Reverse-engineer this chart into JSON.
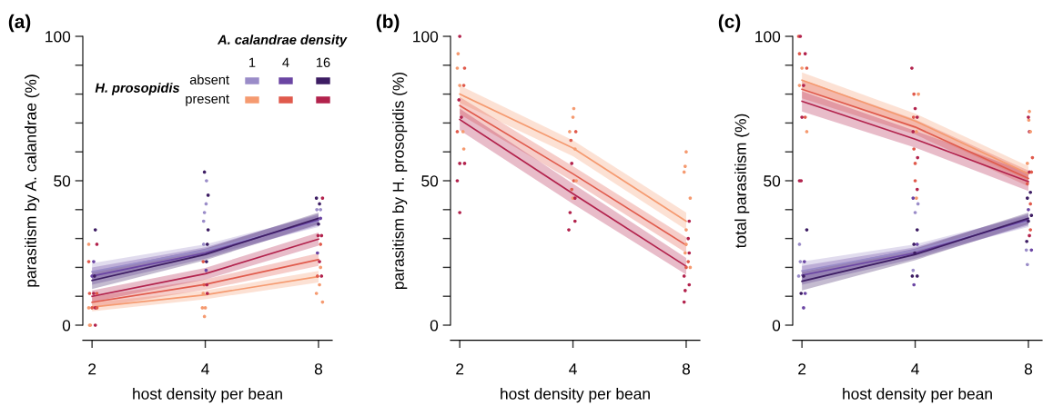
{
  "chart_data": [
    {
      "type": "line",
      "title": "(a)",
      "xlabel": "host density per bean",
      "ylabel": "parasitism by A. calandrae (%)",
      "log": "x",
      "xlim": [
        1.89,
        8.7
      ],
      "xticks": [
        2,
        4,
        8
      ],
      "ylim": [
        0,
        100
      ],
      "yticks": [
        0,
        {
          "value": 10,
          "label": null
        },
        {
          "value": 20,
          "label": null
        },
        {
          "value": 30,
          "label": null
        },
        {
          "value": 40,
          "label": null
        },
        50,
        {
          "value": 60,
          "label": null
        },
        {
          "value": 70,
          "label": null
        },
        {
          "value": 80,
          "label": null
        },
        {
          "value": 90,
          "label": null
        },
        100
      ],
      "legend_title": "A. calandrae density",
      "annotations": [
        "H. prosopidis",
        "absent",
        "present",
        "1",
        "4",
        "16"
      ],
      "series": [
        {
          "type": "scatter",
          "x": [
            1.97,
            1.98,
            2.04,
            1.96,
            2.0,
            2.04,
            2.06,
            1.97,
            2.02,
            2.06,
            2.0,
            2.03,
            1.96,
            2.02,
            1.96,
            2.06,
            2.04,
            3.98,
            3.93,
            4.0,
            3.95,
            4.05,
            3.97,
            4.04,
            4.02,
            3.95,
            4.03,
            3.96,
            4.05,
            4.07,
            3.96,
            3.98,
            4.02,
            4.07,
            4.03,
            3.98,
            7.9,
            8.05,
            8.2,
            7.95,
            8.15,
            8.1,
            8.05,
            7.95,
            8.1,
            7.98,
            8.15,
            8.0,
            8.1,
            7.92,
            8.05,
            7.9,
            8.2,
            8.1
          ],
          "values": [
            0,
            0,
            0,
            6,
            6,
            6,
            6,
            11,
            11,
            11,
            17,
            17,
            22,
            22,
            28,
            28,
            33,
            3,
            6,
            6,
            11,
            11,
            14,
            14,
            19,
            22,
            22,
            28,
            28,
            33,
            36,
            39,
            42,
            45,
            50,
            53,
            11,
            14,
            8,
            17,
            17,
            20,
            22,
            25,
            28,
            31,
            31,
            35,
            37,
            40,
            42,
            44,
            44,
            40
          ],
          "colors": [
            "#f59a70",
            "#f59a70",
            "#b2224c",
            "#f59a70",
            "#e05a4c",
            "#b2224c",
            "#e05a4c",
            "#e05a4c",
            "#b2224c",
            "#e05a4c",
            "#6b45a3",
            "#3d1d63",
            "#e05a4c",
            "#6b45a3",
            "#f59a70",
            "#b2224c",
            "#3d1d63",
            "#f59a70",
            "#f59a70",
            "#f59a70",
            "#f59a70",
            "#b2224c",
            "#e05a4c",
            "#b2224c",
            "#6b45a3",
            "#e05a4c",
            "#3d1d63",
            "#9a8cc8",
            "#3d1d63",
            "#3d1d63",
            "#9a8cc8",
            "#9a8cc8",
            "#9a8cc8",
            "#3d1d63",
            "#9a8cc8",
            "#3d1d63",
            "#f59a70",
            "#f59a70",
            "#f59a70",
            "#e05a4c",
            "#b2224c",
            "#f59a70",
            "#b2224c",
            "#6b45a3",
            "#e05a4c",
            "#b2224c",
            "#b2224c",
            "#3d1d63",
            "#6b45a3",
            "#9a8cc8",
            "#3d1d63",
            "#3d1d63",
            "#b2224c",
            "#9a8cc8"
          ]
        },
        {
          "color": "#9a8cc8",
          "x": [
            2,
            4,
            8
          ],
          "values": [
            18.5,
            26,
            36
          ],
          "lower": [
            15.5,
            24,
            34
          ],
          "upper": [
            21.5,
            28,
            38
          ]
        },
        {
          "color": "#6b45a3",
          "x": [
            2,
            4,
            8
          ],
          "values": [
            17,
            25,
            36.5
          ],
          "lower": [
            14,
            23,
            34.5
          ],
          "upper": [
            20,
            27,
            38.5
          ]
        },
        {
          "color": "#3d1d63",
          "x": [
            2,
            4,
            8
          ],
          "values": [
            15.5,
            24.5,
            37
          ],
          "lower": [
            12.5,
            22.5,
            35
          ],
          "upper": [
            18.5,
            26.5,
            39
          ]
        },
        {
          "color": "#f59a70",
          "x": [
            2,
            4,
            8
          ],
          "values": [
            6.3,
            10.5,
            16.8
          ],
          "lower": [
            4.8,
            9,
            14.8
          ],
          "upper": [
            7.8,
            12,
            18.8
          ]
        },
        {
          "color": "#e05a4c",
          "x": [
            2,
            4,
            8
          ],
          "values": [
            7.9,
            14.1,
            22.7
          ],
          "lower": [
            6,
            12.3,
            20.5
          ],
          "upper": [
            9.8,
            15.9,
            24.9
          ]
        },
        {
          "color": "#b2224c",
          "x": [
            2,
            4,
            8
          ],
          "values": [
            10,
            17.8,
            29.8
          ],
          "lower": [
            8,
            15.8,
            27.5
          ],
          "upper": [
            12,
            19.8,
            32.1
          ]
        }
      ]
    },
    {
      "type": "line",
      "title": "(b)",
      "xlabel": "host density per bean",
      "ylabel": "parasitism by H. prosopidis (%)",
      "log": "x",
      "xlim": [
        1.89,
        8.7
      ],
      "xticks": [
        2,
        4,
        8
      ],
      "ylim": [
        0,
        100
      ],
      "yticks": [
        0,
        {
          "value": 10,
          "label": null
        },
        {
          "value": 20,
          "label": null
        },
        {
          "value": 30,
          "label": null
        },
        {
          "value": 40,
          "label": null
        },
        50,
        {
          "value": 60,
          "label": null
        },
        {
          "value": 70,
          "label": null
        },
        {
          "value": 80,
          "label": null
        },
        {
          "value": 90,
          "label": null
        },
        100
      ],
      "series": [
        {
          "type": "scatter",
          "x": [
            1.97,
            2.0,
            1.98,
            1.97,
            2.06,
            2.0,
            2.05,
            1.99,
            2.02,
            1.97,
            2.04,
            2.05,
            2.0,
            2.06,
            2.0,
            3.9,
            3.93,
            4.0,
            4.05,
            3.97,
            4.02,
            4.08,
            3.97,
            4.05,
            3.95,
            3.92,
            4.07,
            4.0,
            4.02,
            4.05,
            7.9,
            7.95,
            8.15,
            7.9,
            8.0,
            8.1,
            8.2,
            7.95,
            8.15,
            8.0,
            8.1,
            8.0,
            8.15,
            7.9,
            7.95,
            8.0,
            8.2
          ],
          "values": [
            50,
            100,
            94,
            89,
            89,
            83,
            83,
            78,
            72,
            67,
            67,
            61,
            56,
            56,
            39,
            33,
            39,
            44,
            44,
            47,
            50,
            50,
            56,
            61,
            64,
            67,
            67,
            72,
            75,
            36,
            8,
            12,
            14,
            17,
            20,
            22,
            20,
            25,
            25,
            28,
            30,
            33,
            36,
            53,
            55,
            60,
            44
          ],
          "colors": [
            "#b2224c",
            "#b2224c",
            "#f59a70",
            "#f59a70",
            "#e05a4c",
            "#f59a70",
            "#e05a4c",
            "#b2224c",
            "#b2224c",
            "#e05a4c",
            "#f59a70",
            "#f59a70",
            "#b2224c",
            "#b2224c",
            "#b2224c",
            "#b2224c",
            "#b2224c",
            "#f59a70",
            "#b2224c",
            "#e05a4c",
            "#e05a4c",
            "#f59a70",
            "#b2224c",
            "#f59a70",
            "#e05a4c",
            "#f59a70",
            "#e05a4c",
            "#f59a70",
            "#f59a70",
            "#b2224c",
            "#b2224c",
            "#b2224c",
            "#b2224c",
            "#b2224c",
            "#e05a4c",
            "#e05a4c",
            "#f59a70",
            "#f59a70",
            "#b2224c",
            "#f59a70",
            "#b2224c",
            "#f59a70",
            "#b2224c",
            "#f59a70",
            "#f59a70",
            "#f59a70",
            "#f59a70"
          ]
        },
        {
          "color": "#f59a70",
          "x": [
            2,
            4,
            8
          ],
          "values": [
            80,
            61.3,
            36
          ],
          "lower": [
            77,
            58.5,
            33
          ],
          "upper": [
            83,
            64,
            39
          ]
        },
        {
          "color": "#e05a4c",
          "x": [
            2,
            4,
            8
          ],
          "values": [
            76,
            52.4,
            27.7
          ],
          "lower": [
            73,
            49.8,
            25
          ],
          "upper": [
            79,
            55,
            30.4
          ]
        },
        {
          "color": "#b2224c",
          "x": [
            2,
            4,
            8
          ],
          "values": [
            71.2,
            45.5,
            20.4
          ],
          "lower": [
            67.5,
            42,
            17.5
          ],
          "upper": [
            75,
            49,
            23.3
          ]
        }
      ]
    },
    {
      "type": "line",
      "title": "(c)",
      "xlabel": "host density per bean",
      "ylabel": "total parasitism (%)",
      "log": "x",
      "xlim": [
        1.89,
        8.7
      ],
      "xticks": [
        2,
        4,
        8
      ],
      "ylim": [
        0,
        100
      ],
      "yticks": [
        0,
        {
          "value": 10,
          "label": null
        },
        {
          "value": 20,
          "label": null
        },
        {
          "value": 30,
          "label": null
        },
        {
          "value": 40,
          "label": null
        },
        50,
        {
          "value": 60,
          "label": null
        },
        {
          "value": 70,
          "label": null
        },
        {
          "value": 80,
          "label": null
        },
        {
          "value": 90,
          "label": null
        },
        100
      ],
      "series": [
        {
          "type": "scatter",
          "x": [
            1.96,
            1.98,
            1.97,
            2.04,
            2.0,
            2.06,
            1.97,
            2.02,
            2.0,
            2.04,
            2.06,
            1.97,
            1.99,
            2.06,
            1.97,
            2.03,
            1.98,
            1.96,
            2.02,
            1.99,
            2.04,
            2.02,
            3.92,
            3.97,
            4.08,
            4.0,
            3.96,
            4.05,
            3.95,
            4.03,
            3.97,
            4.06,
            4.0,
            4.0,
            4.05,
            3.95,
            4.03,
            4.07,
            4.0,
            4.05,
            3.97,
            4.05,
            3.99,
            3.95,
            3.93,
            4.05,
            3.97,
            7.95,
            7.9,
            8.15,
            7.92,
            8.05,
            8.1,
            8.0,
            8.15,
            8.0,
            8.1,
            7.95,
            8.1,
            7.95,
            8.05,
            8.15,
            8.2,
            7.95,
            8.05,
            8.1,
            8.02,
            8.05,
            8.0
          ],
          "values": [
            100,
            100,
            94,
            94,
            89,
            89,
            83,
            83,
            72,
            72,
            67,
            50,
            50,
            33,
            28,
            22,
            22,
            17,
            17,
            11,
            11,
            6,
            89,
            80,
            80,
            75,
            72,
            72,
            67,
            67,
            61,
            58,
            56,
            50,
            47,
            44,
            44,
            42,
            39,
            33,
            28,
            28,
            25,
            19,
            17,
            17,
            14,
            21,
            26,
            26,
            29,
            31,
            33,
            36,
            38,
            40,
            42,
            44,
            46,
            49,
            53,
            53,
            58,
            56,
            67,
            67,
            71,
            74,
            72
          ],
          "colors": [
            "#e05a4c",
            "#b2224c",
            "#e05a4c",
            "#b2224c",
            "#f59a70",
            "#e05a4c",
            "#f59a70",
            "#b2224c",
            "#b2224c",
            "#e05a4c",
            "#f59a70",
            "#b2224c",
            "#b2224c",
            "#3d1d63",
            "#9a8cc8",
            "#6b45a3",
            "#9a8cc8",
            "#9a8cc8",
            "#3d1d63",
            "#3d1d63",
            "#6b45a3",
            "#6b45a3",
            "#b2224c",
            "#e05a4c",
            "#f59a70",
            "#b2224c",
            "#e05a4c",
            "#b2224c",
            "#b2224c",
            "#f59a70",
            "#e05a4c",
            "#b2224c",
            "#e05a4c",
            "#e05a4c",
            "#b2224c",
            "#6b45a3",
            "#f59a70",
            "#9a8cc8",
            "#9a8cc8",
            "#3d1d63",
            "#3d1d63",
            "#6b45a3",
            "#3d1d63",
            "#9a8cc8",
            "#3d1d63",
            "#3d1d63",
            "#6b45a3",
            "#9a8cc8",
            "#9a8cc8",
            "#6b45a3",
            "#3d1d63",
            "#b2224c",
            "#e05a4c",
            "#3d1d63",
            "#3d1d63",
            "#6b45a3",
            "#e05a4c",
            "#3d1d63",
            "#3d1d63",
            "#e05a4c",
            "#b2224c",
            "#e05a4c",
            "#e05a4c",
            "#f59a70",
            "#b2224c",
            "#f59a70",
            "#f59a70",
            "#f59a70",
            "#b2224c"
          ]
        },
        {
          "color": "#9a8cc8",
          "x": [
            2,
            4,
            8
          ],
          "values": [
            18.8,
            26,
            36
          ],
          "lower": [
            15.5,
            24,
            34
          ],
          "upper": [
            22,
            28,
            38
          ]
        },
        {
          "color": "#6b45a3",
          "x": [
            2,
            4,
            8
          ],
          "values": [
            17.3,
            25,
            36.5
          ],
          "lower": [
            14,
            23,
            34.5
          ],
          "upper": [
            20.5,
            27,
            38.5
          ]
        },
        {
          "color": "#3d1d63",
          "x": [
            2,
            4,
            8
          ],
          "values": [
            15.2,
            24.5,
            37
          ],
          "lower": [
            12,
            22.5,
            35
          ],
          "upper": [
            18.5,
            26.5,
            39
          ]
        },
        {
          "color": "#f59a70",
          "x": [
            2,
            4,
            8
          ],
          "values": [
            84.8,
            70.7,
            52.4
          ],
          "lower": [
            82,
            68,
            50
          ],
          "upper": [
            87.5,
            73.3,
            55
          ]
        },
        {
          "color": "#e05a4c",
          "x": [
            2,
            4,
            8
          ],
          "values": [
            81.7,
            68.6,
            50.8
          ],
          "lower": [
            78.5,
            66,
            48
          ],
          "upper": [
            85,
            71.2,
            53.5
          ]
        },
        {
          "color": "#b2224c",
          "x": [
            2,
            4,
            8
          ],
          "values": [
            77.5,
            64.4,
            49.7
          ],
          "lower": [
            74,
            61.5,
            46.5
          ],
          "upper": [
            81,
            67.3,
            52.8
          ]
        }
      ]
    }
  ]
}
